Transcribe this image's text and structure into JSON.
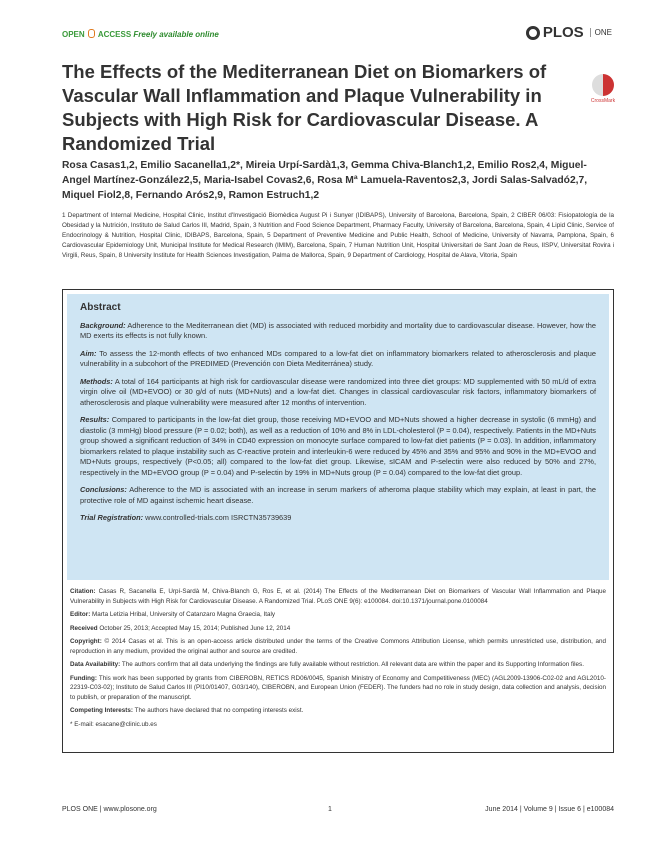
{
  "header": {
    "open": "OPEN",
    "access": "ACCESS",
    "free": "Freely available online",
    "logo": "PLOS",
    "logo_sub": "ONE"
  },
  "title": "The Effects of the Mediterranean Diet on Biomarkers of Vascular Wall Inflammation and Plaque Vulnerability in Subjects with High Risk for Cardiovascular Disease. A Randomized Trial",
  "crossmark": "CrossMark",
  "authors": "Rosa Casas1,2, Emilio Sacanella1,2*, Mireia Urpí-Sardà1,3, Gemma Chiva-Blanch1,2, Emilio Ros2,4, Miguel-Angel Martínez-González2,5, Maria-Isabel Covas2,6, Rosa Mª Lamuela-Raventos2,3, Jordi Salas-Salvadó2,7, Miquel Fiol2,8, Fernando Arós2,9, Ramon Estruch1,2",
  "affiliations": "1 Department of Internal Medicine, Hospital Clinic, Institut d'Investigació Biomèdica August Pi i Sunyer (IDIBAPS), University of Barcelona, Barcelona, Spain, 2 CIBER 06/03: Fisiopatología de la Obesidad y la Nutrición, Instituto de Salud Carlos III, Madrid, Spain, 3 Nutrition and Food Science Department, Pharmacy Faculty, University of Barcelona, Barcelona, Spain, 4 Lipid Clinic, Service of Endocrinology & Nutrition, Hospital Clinic, IDIBAPS, Barcelona, Spain, 5 Department of Preventive Medicine and Public Health, School of Medicine, University of Navarra, Pamplona, Spain, 6 Cardiovascular Epidemiology Unit, Municipal Institute for Medical Research (IMIM), Barcelona, Spain, 7 Human Nutrition Unit, Hospital Universitari de Sant Joan de Reus, IISPV, Universitat Rovira i Virgili, Reus, Spain, 8 University Institute for Health Sciences Investigation, Palma de Mallorca, Spain, 9 Department of Cardiology, Hospital de Alava, Vitoria, Spain",
  "abstract": {
    "heading": "Abstract",
    "sections": [
      {
        "label": "Background:",
        "text": " Adherence to the Mediterranean diet (MD) is associated with reduced morbidity and mortality due to cardiovascular disease. However, how the MD exerts its effects is not fully known."
      },
      {
        "label": "Aim:",
        "text": " To assess the 12-month effects of two enhanced MDs compared to a low-fat diet on inflammatory biomarkers related to atherosclerosis and plaque vulnerability in a subcohort of the PREDIMED (Prevención con Dieta Mediterránea) study."
      },
      {
        "label": "Methods:",
        "text": " A total of 164 participants at high risk for cardiovascular disease were randomized into three diet groups: MD supplemented with 50 mL/d of extra virgin olive oil (MD+EVOO) or 30 g/d of nuts (MD+Nuts) and a low-fat diet. Changes in classical cardiovascular risk factors, inflammatory biomarkers of atherosclerosis and plaque vulnerability were measured after 12 months of intervention."
      },
      {
        "label": "Results:",
        "text": " Compared to participants in the low-fat diet group, those receiving MD+EVOO and MD+Nuts showed a higher decrease in systolic (6 mmHg) and diastolic (3 mmHg) blood pressure (P = 0.02; both), as well as a reduction of 10% and 8% in LDL-cholesterol (P = 0.04), respectively. Patients in the MD+Nuts group showed a significant reduction of 34% in CD40 expression on monocyte surface compared to low-fat diet patients (P = 0.03). In addition, inflammatory biomarkers related to plaque instability such as C-reactive protein and interleukin-6 were reduced by 45% and 35% and 95% and 90% in the MD+EVOO and MD+Nuts groups, respectively (P<0.05; all) compared to the low-fat diet group. Likewise, sICAM and P-selectin were also reduced by 50% and 27%, respectively in the MD+EVOO group (P = 0.04) and P-selectin by 19% in MD+Nuts group (P = 0.04) compared to the low-fat diet group."
      },
      {
        "label": "Conclusions:",
        "text": " Adherence to the MD is associated with an increase in serum markers of atheroma plaque stability which may explain, at least in part, the protective role of MD against ischemic heart disease."
      },
      {
        "label": "Trial Registration:",
        "text": " www.controlled-trials.com ISRCTN35739639"
      }
    ]
  },
  "meta": [
    {
      "label": "Citation:",
      "text": " Casas R, Sacanella E, Urpí-Sardà M, Chiva-Blanch G, Ros E, et al. (2014) The Effects of the Mediterranean Diet on Biomarkers of Vascular Wall Inflammation and Plaque Vulnerability in Subjects with High Risk for Cardiovascular Disease. A Randomized Trial. PLoS ONE 9(6): e100084. doi:10.1371/journal.pone.0100084"
    },
    {
      "label": "Editor:",
      "text": " Marta Letizia Hribal, University of Catanzaro Magna Graecia, Italy"
    },
    {
      "label": "Received",
      "text": " October 25, 2013; Accepted May 15, 2014; Published June 12, 2014"
    },
    {
      "label": "Copyright:",
      "text": " © 2014 Casas et al. This is an open-access article distributed under the terms of the Creative Commons Attribution License, which permits unrestricted use, distribution, and reproduction in any medium, provided the original author and source are credited."
    },
    {
      "label": "Data Availability:",
      "text": " The authors confirm that all data underlying the findings are fully available without restriction. All relevant data are within the paper and its Supporting Information files."
    },
    {
      "label": "Funding:",
      "text": " This work has been supported by grants from CIBEROBN, RETICS RD06/0045, Spanish Ministry of Economy and Competitiveness (MEC) (AGL2009-13906-C02-02 and AGL2010-22319-C03-02); Instituto de Salud Carlos III (PI10/01407, G03/140), CIBEROBN, and European Union (FEDER). The funders had no role in study design, data collection and analysis, decision to publish, or preparation of the manuscript."
    },
    {
      "label": "Competing Interests:",
      "text": " The authors have declared that no competing interests exist."
    },
    {
      "label": "",
      "text": "* E-mail: esacane@clinic.ub.es"
    }
  ],
  "footer": {
    "left": "PLOS ONE | www.plosone.org",
    "page": "1",
    "right": "June 2014 | Volume 9 | Issue 6 | e100084"
  }
}
